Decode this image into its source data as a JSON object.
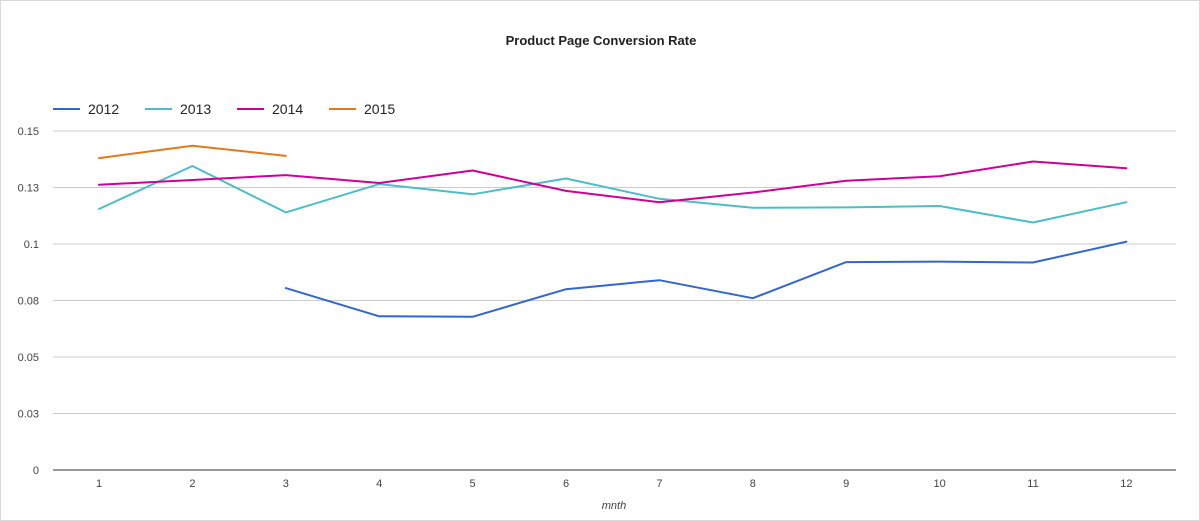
{
  "chart_data": {
    "type": "line",
    "title": "Product Page Conversion Rate",
    "xlabel": "mnth",
    "ylabel": "",
    "x": [
      1,
      2,
      3,
      4,
      5,
      6,
      7,
      8,
      9,
      10,
      11,
      12
    ],
    "y_ticks": [
      "0",
      "0.03",
      "0.05",
      "0.08",
      "0.1",
      "0.13",
      "0.15"
    ],
    "ylim": [
      0,
      0.15
    ],
    "grid": true,
    "legend_position": "top-left",
    "series": [
      {
        "name": "2012",
        "color": "#3366cc",
        "values": [
          null,
          null,
          0.0805,
          0.068,
          0.0678,
          0.08,
          0.084,
          0.076,
          0.092,
          0.0922,
          0.0918,
          0.101
        ]
      },
      {
        "name": "2013",
        "color": "#4dbdc6",
        "values": [
          0.1155,
          0.1345,
          0.114,
          0.1265,
          0.122,
          0.129,
          0.12,
          0.116,
          0.1162,
          0.1168,
          0.1095,
          0.1185
        ]
      },
      {
        "name": "2014",
        "color": "#cc0099",
        "values": [
          0.1262,
          0.1283,
          0.1305,
          0.127,
          0.1325,
          0.1235,
          0.1185,
          0.1228,
          0.128,
          0.13,
          0.1365,
          0.1335
        ]
      },
      {
        "name": "2015",
        "color": "#e07a1a",
        "values": [
          0.138,
          0.1435,
          0.139,
          null,
          null,
          null,
          null,
          null,
          null,
          null,
          null,
          null
        ]
      }
    ]
  }
}
